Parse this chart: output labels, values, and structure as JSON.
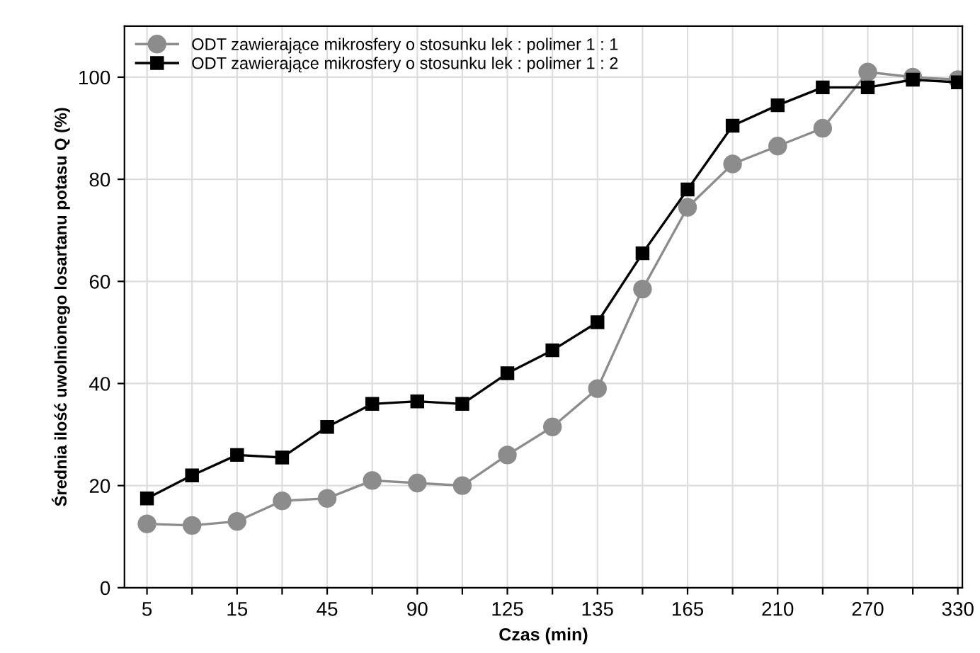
{
  "chart_data": {
    "type": "line",
    "xlabel": "Czas (min)",
    "ylabel": "Średnia ilość uwolnionego losartanu potasu Q (%)",
    "categories": [
      "5",
      null,
      "15",
      null,
      "45",
      null,
      "90",
      null,
      "125",
      null,
      "135",
      null,
      "165",
      null,
      "210",
      null,
      "270",
      null,
      "330"
    ],
    "series": [
      {
        "name": "ODT zawierające mikrosfery o stosunku lek : polimer 1 : 1",
        "color": "#8c8c8c",
        "marker": "circle",
        "values": [
          12.5,
          12.2,
          13,
          17,
          17.5,
          21,
          20.5,
          20,
          26,
          31.5,
          39,
          58.5,
          74.5,
          83,
          86.5,
          90,
          101,
          100,
          99.5
        ]
      },
      {
        "name": "ODT zawierające mikrosfery o stosunku lek : polimer 1 : 2",
        "color": "#000000",
        "marker": "square",
        "values": [
          17.5,
          22,
          26,
          25.5,
          31.5,
          36,
          36.5,
          36,
          42,
          46.5,
          52,
          65.5,
          78,
          90.5,
          94.5,
          98,
          98,
          99.5,
          99
        ]
      }
    ],
    "ylim": [
      0,
      110
    ],
    "yticks": [
      0,
      20,
      40,
      60,
      80,
      100
    ],
    "grid": true,
    "legend": "top left",
    "line_style": "solid"
  }
}
